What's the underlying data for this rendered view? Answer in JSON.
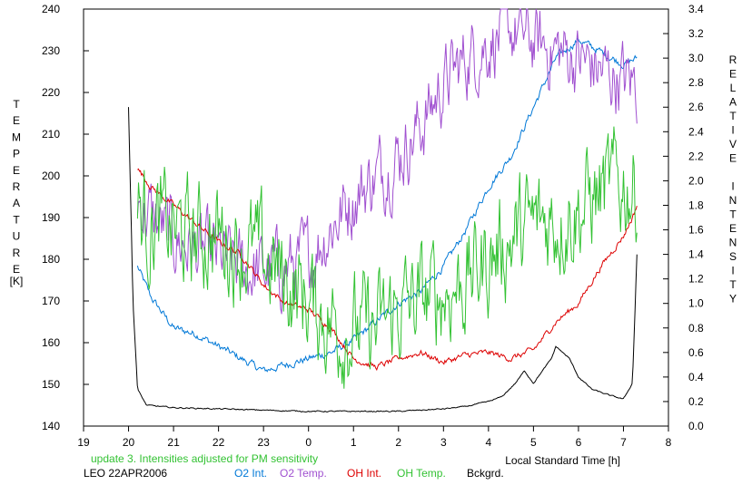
{
  "chart_data": {
    "type": "line",
    "xlabel": "Local Standard Time [h]",
    "ylabel_left": "TEMPERATURE",
    "ylabel_left_unit": "[K]",
    "ylabel_right": "RELATIVE INTENSITY",
    "x_range": [
      19,
      32
    ],
    "x_ticks": [
      19,
      20,
      21,
      22,
      23,
      24,
      25,
      26,
      27,
      28,
      29,
      30,
      31,
      32
    ],
    "x_tick_labels": [
      "19",
      "20",
      "21",
      "22",
      "23",
      "0",
      "1",
      "2",
      "3",
      "4",
      "5",
      "6",
      "7",
      "8"
    ],
    "y_left_range": [
      140,
      240
    ],
    "y_left_ticks": [
      140,
      150,
      160,
      170,
      180,
      190,
      200,
      210,
      220,
      230,
      240
    ],
    "y_right_range": [
      0,
      3.4
    ],
    "y_right_ticks": [
      0.0,
      0.2,
      0.4,
      0.6,
      0.8,
      1.0,
      1.2,
      1.4,
      1.6,
      1.8,
      2.0,
      2.2,
      2.4,
      2.6,
      2.8,
      3.0,
      3.2,
      3.4
    ],
    "note": "update 3. Intensities adjusted for PM sensitivity",
    "station_date": "LEO 22APR2006",
    "series": [
      {
        "name": "O2 Int.",
        "axis": "right",
        "color": "#0078d7",
        "noise": 0.025,
        "x": [
          20.2,
          20.5,
          21.0,
          21.5,
          22.0,
          22.5,
          23.0,
          23.5,
          24.0,
          24.5,
          25.0,
          25.5,
          26.0,
          26.5,
          27.0,
          27.5,
          28.0,
          28.5,
          29.0,
          29.5,
          30.0,
          30.5,
          31.0,
          31.3
        ],
        "y": [
          1.3,
          1.05,
          0.8,
          0.75,
          0.65,
          0.55,
          0.45,
          0.5,
          0.55,
          0.6,
          0.7,
          0.85,
          1.0,
          1.1,
          1.3,
          1.6,
          1.95,
          2.2,
          2.6,
          3.0,
          3.15,
          3.05,
          2.95,
          3.0
        ]
      },
      {
        "name": "O2 Temp.",
        "axis": "left",
        "color": "#a050d0",
        "noise": 7,
        "x": [
          20.2,
          20.5,
          21.0,
          21.5,
          22.0,
          22.5,
          23.0,
          23.5,
          24.0,
          24.5,
          25.0,
          25.5,
          26.0,
          26.5,
          27.0,
          27.5,
          28.0,
          28.5,
          29.0,
          29.5,
          30.0,
          30.5,
          31.0,
          31.3
        ],
        "y": [
          195,
          190,
          185,
          182,
          180,
          178,
          177,
          178,
          180,
          188,
          195,
          200,
          205,
          212,
          222,
          228,
          232,
          235,
          232,
          230,
          228,
          225,
          223,
          222
        ]
      },
      {
        "name": "OH Int.",
        "axis": "right",
        "color": "#dd0000",
        "noise": 0.02,
        "x": [
          20.2,
          20.5,
          21.0,
          21.5,
          22.0,
          22.5,
          23.0,
          23.5,
          24.0,
          24.5,
          25.0,
          25.5,
          26.0,
          26.5,
          27.0,
          27.5,
          28.0,
          28.5,
          29.0,
          29.5,
          30.0,
          30.5,
          31.0,
          31.2,
          31.3
        ],
        "y": [
          2.1,
          1.95,
          1.8,
          1.65,
          1.5,
          1.4,
          1.15,
          1.0,
          0.95,
          0.8,
          0.55,
          0.48,
          0.55,
          0.6,
          0.52,
          0.58,
          0.6,
          0.55,
          0.62,
          0.85,
          1.0,
          1.3,
          1.55,
          1.7,
          1.8
        ]
      },
      {
        "name": "OH Temp.",
        "axis": "left",
        "color": "#33c233",
        "noise": 10,
        "x": [
          20.2,
          20.5,
          21.0,
          21.5,
          22.0,
          22.5,
          23.0,
          23.5,
          24.0,
          24.5,
          25.0,
          25.5,
          26.0,
          26.5,
          27.0,
          27.5,
          28.0,
          28.5,
          29.0,
          29.5,
          30.0,
          30.5,
          31.0,
          31.3
        ],
        "y": [
          192,
          188,
          187,
          185,
          186,
          183,
          180,
          175,
          170,
          165,
          163,
          163,
          168,
          170,
          172,
          175,
          180,
          185,
          188,
          190,
          192,
          196,
          198,
          197
        ]
      },
      {
        "name": "Bckgrd.",
        "axis": "right",
        "color": "#000000",
        "noise": 0.004,
        "x": [
          20.0,
          20.1,
          20.2,
          20.4,
          21.0,
          22.0,
          23.0,
          24.0,
          25.0,
          26.0,
          27.0,
          27.5,
          28.0,
          28.3,
          28.6,
          28.8,
          29.0,
          29.2,
          29.4,
          29.5,
          29.8,
          30.0,
          30.3,
          30.7,
          31.0,
          31.2,
          31.3
        ],
        "y": [
          2.6,
          1.0,
          0.3,
          0.17,
          0.15,
          0.14,
          0.13,
          0.12,
          0.12,
          0.12,
          0.14,
          0.16,
          0.2,
          0.24,
          0.35,
          0.45,
          0.35,
          0.45,
          0.55,
          0.65,
          0.55,
          0.4,
          0.3,
          0.25,
          0.22,
          0.35,
          1.4
        ]
      }
    ]
  }
}
